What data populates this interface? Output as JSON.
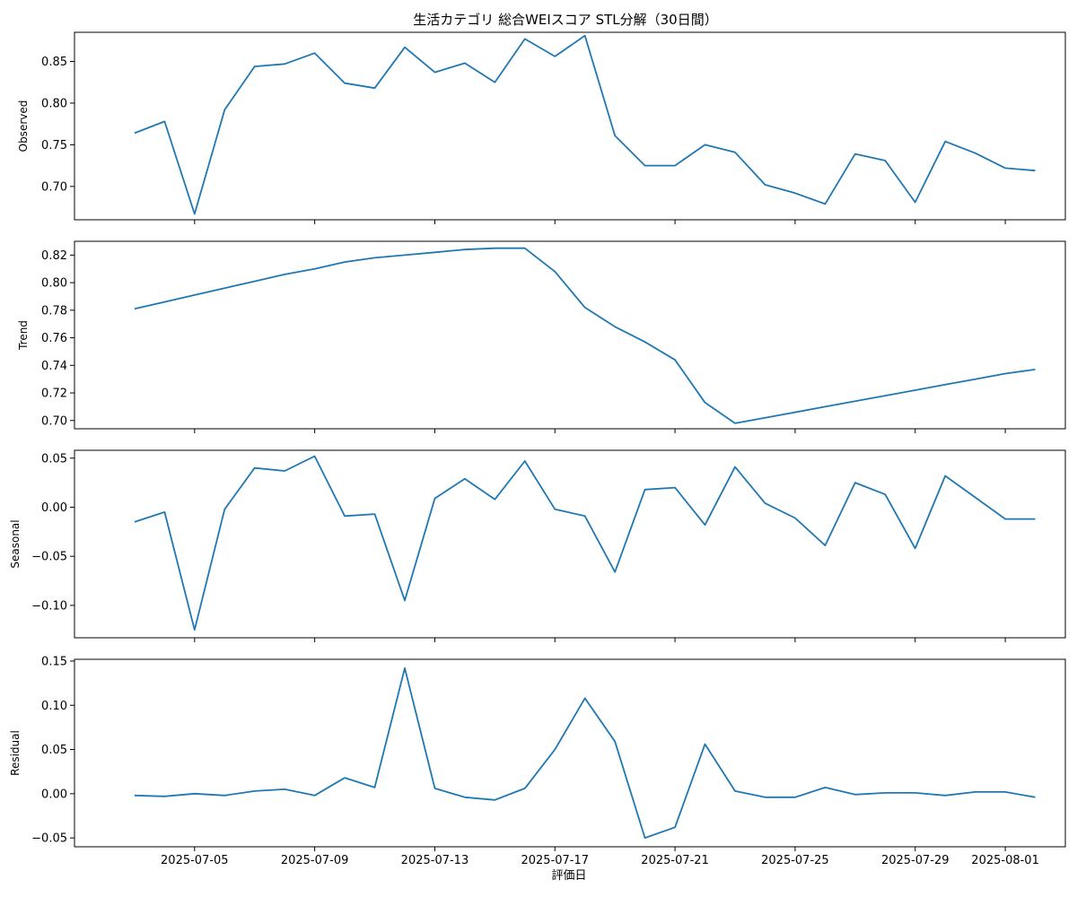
{
  "chart_data": {
    "type": "line",
    "title": "生活カテゴリ 総合WEIスコア STL分解（30日間）",
    "xlabel": "評価日",
    "color": "#1f77b4",
    "x": [
      "2025-07-03",
      "2025-07-04",
      "2025-07-05",
      "2025-07-06",
      "2025-07-07",
      "2025-07-08",
      "2025-07-09",
      "2025-07-10",
      "2025-07-11",
      "2025-07-12",
      "2025-07-13",
      "2025-07-14",
      "2025-07-15",
      "2025-07-16",
      "2025-07-17",
      "2025-07-18",
      "2025-07-19",
      "2025-07-20",
      "2025-07-21",
      "2025-07-22",
      "2025-07-23",
      "2025-07-24",
      "2025-07-25",
      "2025-07-26",
      "2025-07-27",
      "2025-07-28",
      "2025-07-29",
      "2025-07-30",
      "2025-07-31",
      "2025-08-01",
      "2025-08-02"
    ],
    "x_ticks": [
      "2025-07-05",
      "2025-07-09",
      "2025-07-13",
      "2025-07-17",
      "2025-07-21",
      "2025-07-25",
      "2025-07-29",
      "2025-08-01"
    ],
    "x_range": [
      "2025-07-01",
      "2025-08-03"
    ],
    "panels": [
      {
        "name": "Observed",
        "ylabel": "Observed",
        "ylim": [
          0.66,
          0.885
        ],
        "yticks": [
          0.7,
          0.75,
          0.8,
          0.85
        ],
        "ytick_labels": [
          "0.70",
          "0.75",
          "0.80",
          "0.85"
        ],
        "values": [
          0.764,
          0.778,
          0.667,
          0.792,
          0.844,
          0.847,
          0.86,
          0.824,
          0.818,
          0.867,
          0.837,
          0.848,
          0.825,
          0.877,
          0.856,
          0.881,
          0.761,
          0.725,
          0.725,
          0.75,
          0.741,
          0.702,
          0.692,
          0.679,
          0.739,
          0.731,
          0.681,
          0.754,
          0.74,
          0.722,
          0.719
        ]
      },
      {
        "name": "Trend",
        "ylabel": "Trend",
        "ylim": [
          0.694,
          0.83
        ],
        "yticks": [
          0.7,
          0.72,
          0.74,
          0.76,
          0.78,
          0.8,
          0.82
        ],
        "ytick_labels": [
          "0.70",
          "0.72",
          "0.74",
          "0.76",
          "0.78",
          "0.80",
          "0.82"
        ],
        "values": [
          0.781,
          0.786,
          0.791,
          0.796,
          0.801,
          0.806,
          0.81,
          0.815,
          0.818,
          0.82,
          0.822,
          0.824,
          0.825,
          0.825,
          0.808,
          0.782,
          0.768,
          0.757,
          0.744,
          0.713,
          0.698,
          0.702,
          0.706,
          0.71,
          0.714,
          0.718,
          0.722,
          0.726,
          0.73,
          0.734,
          0.737
        ]
      },
      {
        "name": "Seasonal",
        "ylabel": "Seasonal",
        "ylim": [
          -0.133,
          0.058
        ],
        "yticks": [
          -0.1,
          -0.05,
          0.0,
          0.05
        ],
        "ytick_labels": [
          "−0.10",
          "−0.05",
          "0.00",
          "0.05"
        ],
        "values": [
          -0.015,
          -0.005,
          -0.125,
          -0.002,
          0.04,
          0.037,
          0.052,
          -0.009,
          -0.007,
          -0.095,
          0.009,
          0.029,
          0.008,
          0.047,
          -0.002,
          -0.009,
          -0.066,
          0.018,
          0.02,
          -0.018,
          0.041,
          0.004,
          -0.011,
          -0.039,
          0.025,
          0.013,
          -0.042,
          0.032,
          0.01,
          -0.012,
          -0.012
        ]
      },
      {
        "name": "Residual",
        "ylabel": "Residual",
        "ylim": [
          -0.06,
          0.152
        ],
        "yticks": [
          -0.05,
          0.0,
          0.05,
          0.1,
          0.15
        ],
        "ytick_labels": [
          "−0.05",
          "0.00",
          "0.05",
          "0.10",
          "0.15"
        ],
        "values": [
          -0.002,
          -0.003,
          0.0,
          -0.002,
          0.003,
          0.005,
          -0.002,
          0.018,
          0.007,
          0.142,
          0.006,
          -0.004,
          -0.007,
          0.006,
          0.05,
          0.108,
          0.059,
          -0.05,
          -0.038,
          0.056,
          0.003,
          -0.004,
          -0.004,
          0.007,
          -0.001,
          0.001,
          0.001,
          -0.002,
          0.002,
          0.002,
          -0.004
        ]
      }
    ]
  }
}
